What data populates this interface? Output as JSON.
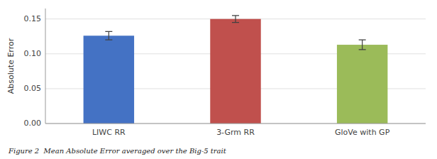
{
  "chart_data": {
    "type": "bar",
    "categories": [
      "LIWC RR",
      "3-Grm RR",
      "GloVe with GP"
    ],
    "values": [
      0.126,
      0.15,
      0.113
    ],
    "errors": [
      0.006,
      0.005,
      0.007
    ],
    "colors": [
      "#4472C4",
      "#C0504D",
      "#9BBB59"
    ],
    "ylabel": "Absolute Error",
    "caption": "Figure 2  Mean Absolute Error averaged over the Big-5 trait",
    "ylim": [
      0,
      0.165
    ],
    "yticks": [
      {
        "value": 0,
        "label": "0.00"
      },
      0.05,
      {
        "value": 0.1,
        "label": "0.10"
      },
      {
        "value": 0.15,
        "label": "0.15"
      }
    ],
    "grid": true
  }
}
